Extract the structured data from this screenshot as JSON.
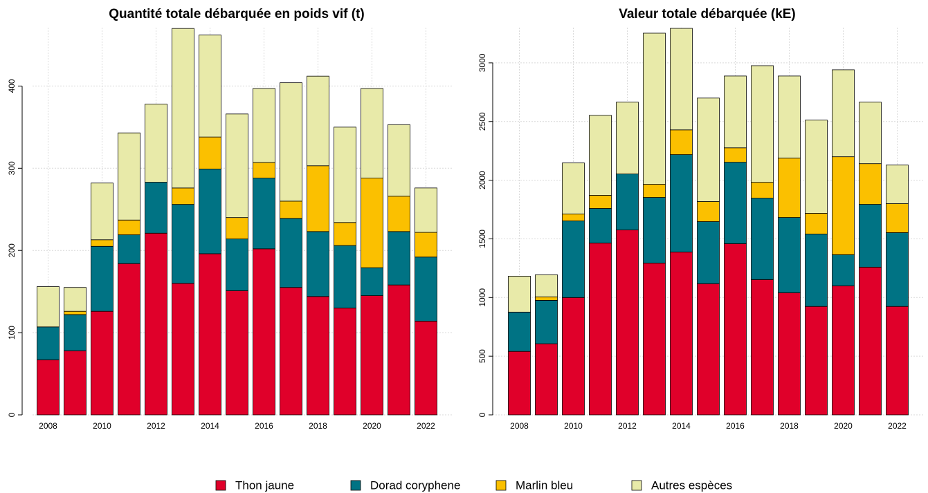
{
  "chart_data": [
    {
      "type": "stacked-bar",
      "title": "Quantité totale débarquée en poids vif (t)",
      "categories": [
        "2008",
        null,
        "2010",
        null,
        "2012",
        null,
        "2014",
        null,
        "2016",
        null,
        "2018",
        null,
        "2020",
        null,
        "2022"
      ],
      "series": [
        {
          "name": "Thon jaune",
          "color": "#e0002a",
          "values": [
            67,
            78,
            126,
            184,
            221,
            160,
            196,
            151,
            202,
            155,
            144,
            130,
            145,
            158,
            114
          ]
        },
        {
          "name": "Dorad coryphene",
          "color": "#007384",
          "values": [
            40,
            44,
            79,
            35,
            62,
            96,
            103,
            63,
            86,
            84,
            79,
            76,
            34,
            65,
            78
          ]
        },
        {
          "name": "Marlin bleu",
          "color": "#fbc000",
          "values": [
            0,
            4,
            8,
            18,
            0,
            20,
            39,
            26,
            19,
            21,
            80,
            28,
            109,
            43,
            30
          ]
        },
        {
          "name": "Autres espèces",
          "color": "#e8eaa9",
          "values": [
            49,
            29,
            69,
            106,
            95,
            194,
            124,
            126,
            90,
            144,
            109,
            116,
            109,
            87,
            54
          ]
        }
      ],
      "ylim": [
        0,
        471
      ],
      "yticks": [
        0,
        100,
        200,
        300,
        400
      ],
      "grid": true
    },
    {
      "type": "stacked-bar",
      "title": "Valeur totale débarquée (kE)",
      "categories": [
        "2008",
        null,
        "2010",
        null,
        "2012",
        null,
        "2014",
        null,
        "2016",
        null,
        "2018",
        null,
        "2020",
        null,
        "2022"
      ],
      "series": [
        {
          "color": "#e0002a",
          "values": [
            541,
            606,
            1000,
            1465,
            1576,
            1294,
            1388,
            1118,
            1459,
            1153,
            1041,
            924,
            1100,
            1259,
            924
          ]
        },
        {
          "color": "#007384",
          "values": [
            335,
            370,
            653,
            294,
            477,
            559,
            830,
            529,
            694,
            694,
            641,
            617,
            265,
            535,
            629
          ]
        },
        {
          "color": "#fbc000",
          "values": [
            0,
            30,
            59,
            112,
            0,
            112,
            211,
            171,
            123,
            135,
            506,
            177,
            835,
            347,
            247
          ]
        },
        {
          "color": "#e8eaa9",
          "values": [
            306,
            188,
            435,
            682,
            612,
            1288,
            865,
            882,
            612,
            994,
            700,
            794,
            741,
            524,
            329
          ]
        }
      ],
      "ylim": [
        0,
        3300
      ],
      "yticks": [
        0,
        500,
        1000,
        1500,
        2000,
        2500,
        3000
      ],
      "grid": true
    }
  ]
}
